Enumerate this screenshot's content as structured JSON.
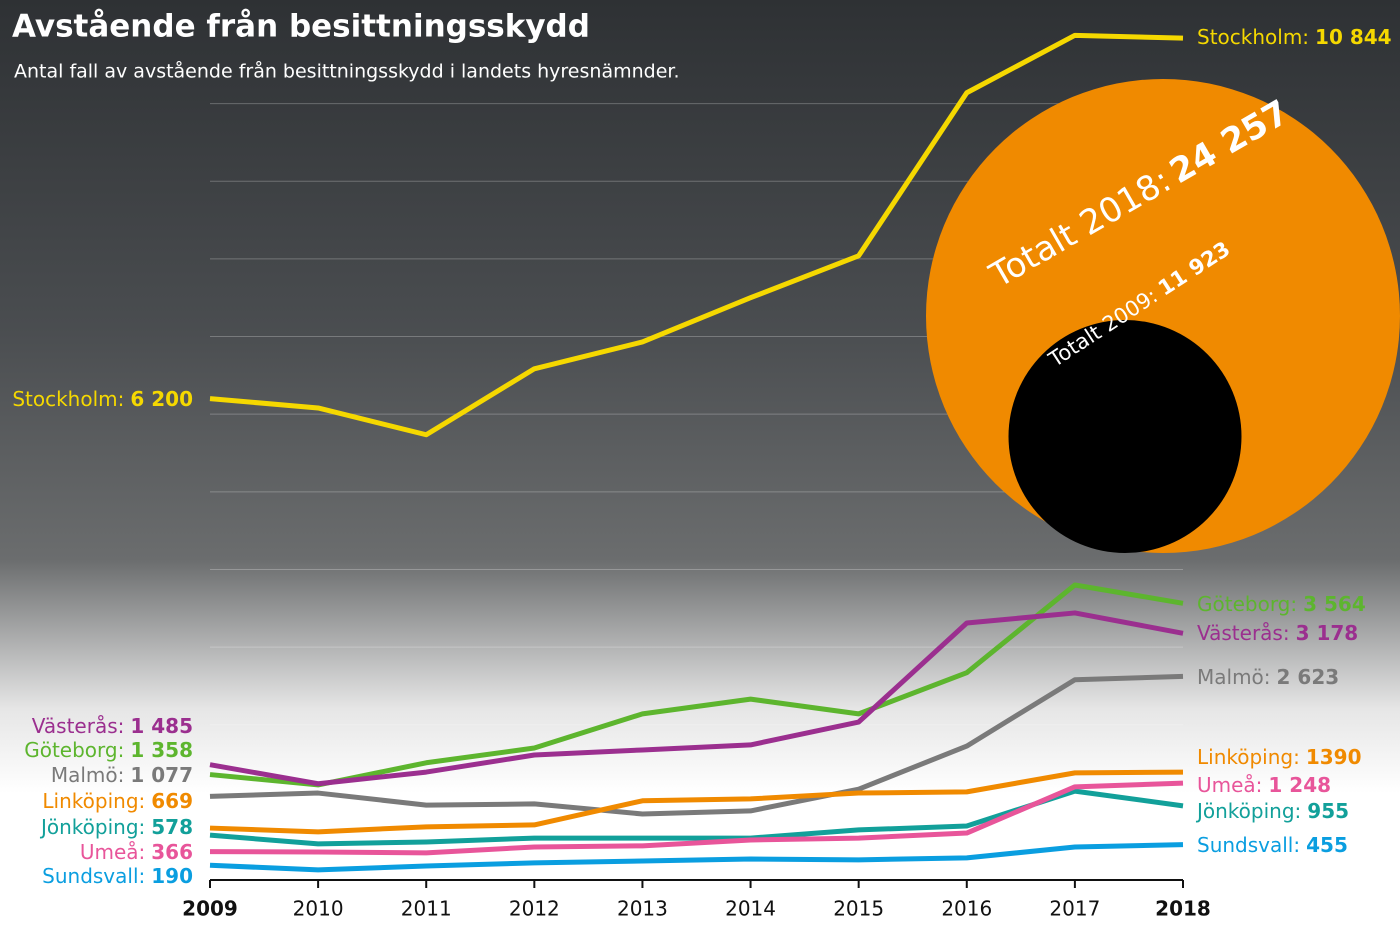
{
  "chart_data": {
    "type": "line",
    "title": "Avstående från besittningsskydd",
    "subtitle": "Antal fall av avstående från besittningsskydd i landets hyresnämnder.",
    "categories": [
      "2009",
      "2010",
      "2011",
      "2012",
      "2013",
      "2014",
      "2015",
      "2016",
      "2017",
      "2018"
    ],
    "ylim": [
      0,
      11000
    ],
    "yticks": [
      1000,
      2000,
      3000,
      4000,
      5000,
      6000,
      7000,
      8000,
      9000,
      10000
    ],
    "grid": true,
    "show_y_tick_labels": false,
    "series": [
      {
        "name": "Stockholm:",
        "color": "#f5d800",
        "values": [
          6200,
          6080,
          5735,
          6585,
          6930,
          7500,
          8040,
          10140,
          10880,
          10844
        ],
        "value_labels": [
          "6 200",
          null,
          null,
          null,
          null,
          null,
          null,
          null,
          null,
          "10 844"
        ]
      },
      {
        "name": "Göteborg:",
        "color": "#5db52e",
        "values": [
          1358,
          1225,
          1510,
          1700,
          2140,
          2330,
          2140,
          2670,
          3800,
          3564
        ],
        "value_labels": [
          "1 358",
          null,
          null,
          null,
          null,
          null,
          null,
          null,
          null,
          "3 564"
        ]
      },
      {
        "name": "Västerås:",
        "color": "#9b2f8f",
        "values": [
          1485,
          1240,
          1390,
          1610,
          1675,
          1740,
          2035,
          3310,
          3440,
          3178
        ],
        "value_labels": [
          "1 485",
          null,
          null,
          null,
          null,
          null,
          null,
          null,
          null,
          "3 178"
        ]
      },
      {
        "name": "Malmö:",
        "color": "#7a7a7a",
        "values": [
          1077,
          1120,
          965,
          980,
          850,
          890,
          1170,
          1725,
          2580,
          2623
        ],
        "value_labels": [
          "1 077",
          null,
          null,
          null,
          null,
          null,
          null,
          null,
          null,
          "2 623"
        ]
      },
      {
        "name": "Linköping:",
        "color": "#f08a00",
        "values": [
          669,
          620,
          685,
          710,
          1020,
          1045,
          1120,
          1135,
          1380,
          1390
        ]
      },
      {
        "name": "Jönköping:",
        "color": "#12a09a",
        "values": [
          578,
          465,
          490,
          540,
          540,
          540,
          645,
          695,
          1145,
          955
        ]
      },
      {
        "name": "Umeå:",
        "color": "#e8559a",
        "values": [
          366,
          360,
          350,
          425,
          440,
          515,
          540,
          605,
          1200,
          1248
        ],
        "value_labels": [
          null,
          null,
          null,
          null,
          null,
          null,
          null,
          null,
          null,
          "1 248"
        ]
      },
      {
        "name": "Sundsvall:",
        "color": "#0a9ee0",
        "values": [
          190,
          130,
          180,
          220,
          245,
          270,
          260,
          285,
          425,
          455
        ]
      }
    ],
    "totals": [
      {
        "label": "Totalt 2018:",
        "value": 24257,
        "value_label": "24 257",
        "color": "#f08a00"
      },
      {
        "label": "Totalt 2009:",
        "value": 11923,
        "value_label": "11 923",
        "color": "#000000"
      }
    ]
  }
}
